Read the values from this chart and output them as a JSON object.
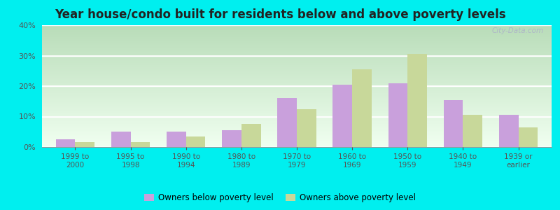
{
  "title": "Year house/condo built for residents below and above poverty levels",
  "categories": [
    "1999 to\n2000",
    "1995 to\n1998",
    "1990 to\n1994",
    "1980 to\n1989",
    "1970 to\n1979",
    "1960 to\n1969",
    "1950 to\n1959",
    "1940 to\n1949",
    "1939 or\nearlier"
  ],
  "below_poverty": [
    2.5,
    5.0,
    5.0,
    5.5,
    16.0,
    20.5,
    21.0,
    15.5,
    10.5
  ],
  "above_poverty": [
    1.5,
    1.5,
    3.5,
    7.5,
    12.5,
    25.5,
    30.5,
    10.5,
    6.5
  ],
  "below_color": "#c9a0dc",
  "above_color": "#c8d89a",
  "ylim": [
    0,
    40
  ],
  "yticks": [
    0,
    10,
    20,
    30,
    40
  ],
  "ytick_labels": [
    "0%",
    "10%",
    "20%",
    "30%",
    "40%"
  ],
  "bar_width": 0.35,
  "outer_background": "#00efef",
  "title_fontsize": 12,
  "legend_below_label": "Owners below poverty level",
  "legend_above_label": "Owners above poverty level",
  "watermark": "City-Data.com"
}
